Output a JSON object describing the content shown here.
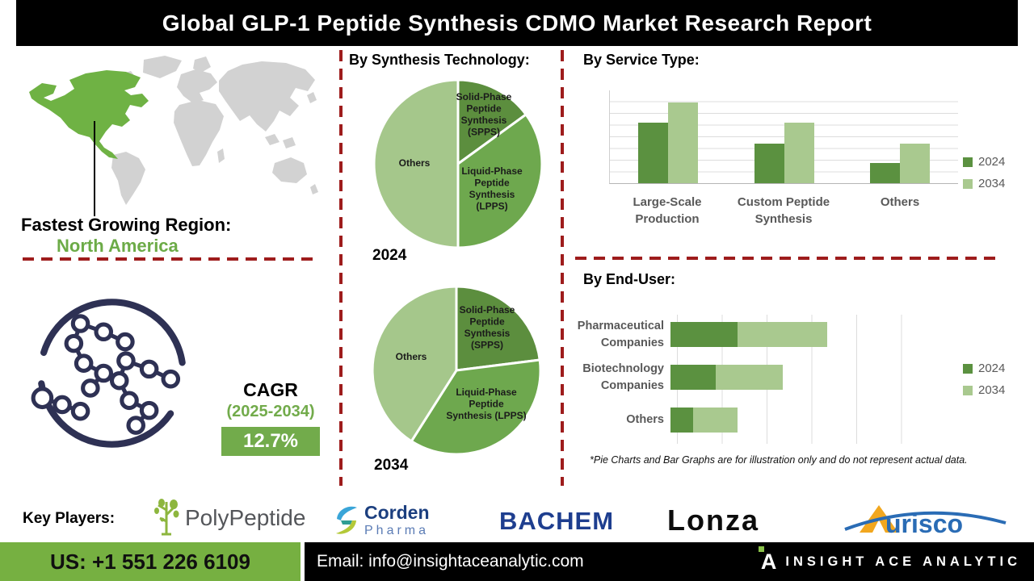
{
  "title": "Global GLP-1 Peptide Synthesis CDMO Market Research Report",
  "colors": {
    "green-dark": "#5c8e3e",
    "green-mid": "#6ea84e",
    "green-light": "#a5c78b",
    "bar-dark": "#5b9140",
    "bar-light": "#a9c98f",
    "map-green": "#6fb244",
    "map-gray": "#d2d2d2",
    "accent-green": "#76b041",
    "cagr-green": "#72ab4b",
    "region-green": "#6cab47",
    "dash-red": "#9e1c1c",
    "navy": "#2e3154",
    "gray-label": "#595959",
    "grid-gray": "#dcdcdc"
  },
  "left": {
    "fastest_label": "Fastest Growing Region:",
    "region": "North America",
    "cagr_title": "CAGR",
    "cagr_period": "(2025-2034)",
    "cagr_value": "12.7%"
  },
  "sections": {
    "synthesis_heading": "By Synthesis Technology:",
    "service_heading": "By Service Type:",
    "enduser_heading": "By End-User:",
    "disclaimer": "*Pie Charts and Bar Graphs are for illustration only and do not represent actual data."
  },
  "legend": {
    "s2024": "2024",
    "s2034": "2034"
  },
  "chart_data": [
    {
      "type": "pie",
      "title": "By Synthesis Technology:",
      "year_label": "2024",
      "slices": [
        {
          "label": "Solid-Phase Peptide Synthesis (SPPS)",
          "label_lines": [
            "Solid-Phase",
            "Peptide",
            "Synthesis",
            "(SPPS)"
          ],
          "value": 15,
          "color": "green-dark",
          "lx": 143,
          "ly": 32
        },
        {
          "label": "Liquid-Phase Peptide Synthesis (LPPS)",
          "label_lines": [
            "Liquid-Phase",
            "Peptide",
            "Synthesis",
            "(LPPS)"
          ],
          "value": 35,
          "color": "green-mid",
          "lx": 153,
          "ly": 124
        },
        {
          "label": "Others",
          "label_lines": [
            "Others"
          ],
          "value": 50,
          "color": "green-light",
          "lx": 57,
          "ly": 114
        }
      ]
    },
    {
      "type": "pie",
      "title": "By Synthesis Technology:",
      "year_label": "2034",
      "slices": [
        {
          "label": "Solid-Phase Peptide Synthesis (SPPS)",
          "label_lines": [
            "Solid-Phase",
            "Peptide",
            "Synthesis",
            "(SPPS)"
          ],
          "value": 23,
          "color": "green-dark",
          "lx": 149,
          "ly": 40
        },
        {
          "label": "Liquid-Phase Peptide Synthesis (LPPS)",
          "label_lines": [
            "Liquid-Phase",
            "Peptide",
            "Synthesis (LPPS)"
          ],
          "value": 36,
          "color": "green-mid",
          "lx": 148,
          "ly": 142
        },
        {
          "label": "Others",
          "label_lines": [
            "Others"
          ],
          "value": 41,
          "color": "green-light",
          "lx": 55,
          "ly": 98
        }
      ]
    },
    {
      "type": "bar",
      "title": "By Service Type:",
      "orientation": "vertical",
      "categories": [
        [
          "Large-Scale",
          "Production"
        ],
        [
          "Custom Peptide",
          "Synthesis"
        ],
        [
          "Others"
        ]
      ],
      "series": [
        {
          "name": "2024",
          "color": "bar-dark",
          "values": [
            65,
            43,
            22
          ]
        },
        {
          "name": "2034",
          "color": "bar-light",
          "values": [
            87,
            65,
            43
          ]
        }
      ],
      "ylim": [
        0,
        100
      ],
      "grid": "horizontal",
      "legend_position": "right"
    },
    {
      "type": "bar",
      "title": "By End-User:",
      "orientation": "horizontal",
      "stacked": true,
      "categories": [
        [
          "Pharmaceutical",
          "Companies"
        ],
        [
          "Biotechnology",
          "Companies"
        ],
        [
          "Others"
        ]
      ],
      "series": [
        {
          "name": "2024",
          "color": "bar-dark",
          "values": [
            30,
            20,
            10
          ]
        },
        {
          "name": "2034",
          "color": "bar-light",
          "values": [
            40,
            30,
            20
          ]
        }
      ],
      "xlim": [
        0,
        120
      ],
      "grid": "vertical",
      "legend_position": "right"
    }
  ],
  "key_players": {
    "label": "Key Players:",
    "brands": [
      {
        "name": "PolyPeptide"
      },
      {
        "name": "Corden",
        "sub": "Pharma"
      },
      {
        "name": "BACHEM"
      },
      {
        "name": "Lonza"
      },
      {
        "name": "urisco",
        "full": "Aurisco"
      }
    ]
  },
  "footer": {
    "phone": "US: +1 551 226 6109",
    "email": "Email: info@insightaceanalytic.com",
    "brand": "INSIGHT ACE ANALYTIC"
  }
}
